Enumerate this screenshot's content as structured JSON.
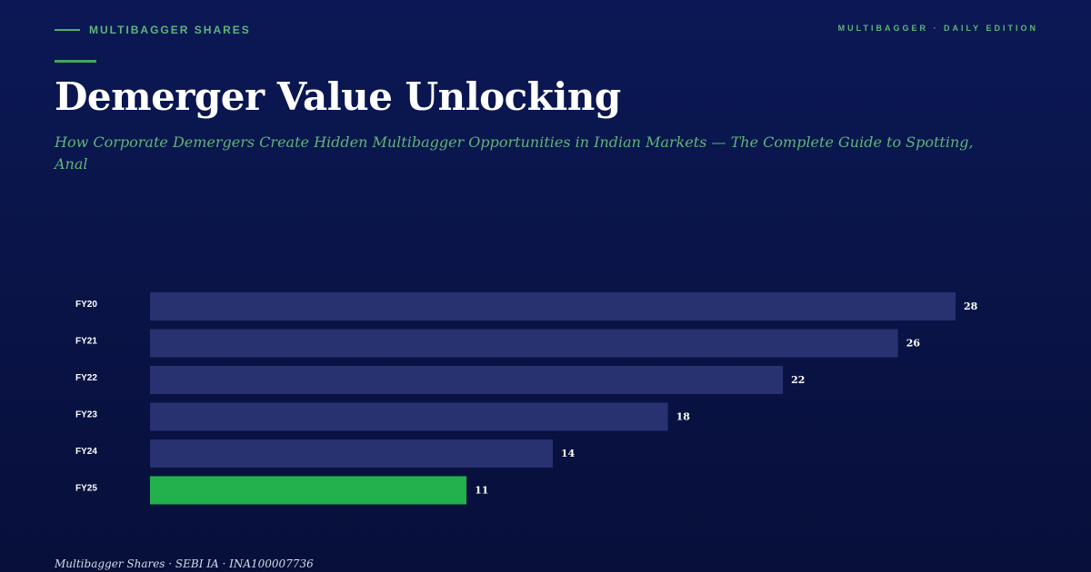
{
  "header": {
    "brand": "MULTIBAGGER SHARES",
    "edition": "MULTIBAGGER · DAILY EDITION"
  },
  "title": "Demerger Value Unlocking",
  "subtitle": "How Corporate Demergers Create Hidden Multibagger Opportunities in Indian Markets — The Complete Guide to Spotting, Anal",
  "footer": "Multibagger Shares · SEBI IA · INA100007736",
  "colors": {
    "bar": "#283271",
    "highlight": "#22b14c",
    "accent": "#5fb57a"
  },
  "chart_data": {
    "type": "bar",
    "orientation": "horizontal",
    "categories": [
      "FY20",
      "FY21",
      "FY22",
      "FY23",
      "FY24",
      "FY25"
    ],
    "values": [
      28,
      26,
      22,
      18,
      14,
      11
    ],
    "highlight_index": 5,
    "title": "",
    "xlabel": "",
    "ylabel": "",
    "xlim": [
      0,
      28
    ],
    "grid": false,
    "legend": "none"
  }
}
